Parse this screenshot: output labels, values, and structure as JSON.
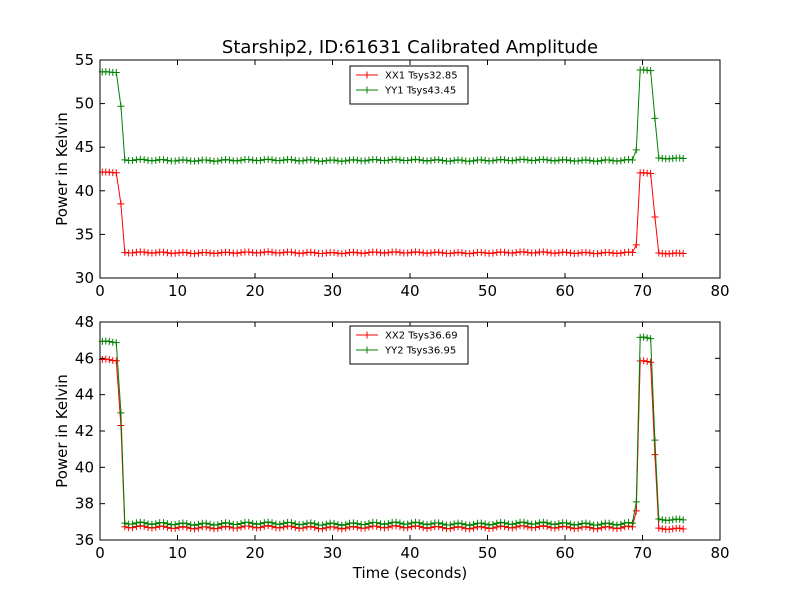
{
  "figure": {
    "title": "Starship2, ID:61631 Calibrated Amplitude",
    "xlabel": "Time (seconds)"
  },
  "chart_data": [
    {
      "type": "line",
      "ylabel": "Power in Kelvin",
      "xlim": [
        0,
        80
      ],
      "ylim": [
        30,
        55
      ],
      "xticks": [
        0,
        10,
        20,
        30,
        40,
        50,
        60,
        70,
        80
      ],
      "yticks": [
        30,
        35,
        40,
        45,
        50,
        55
      ],
      "grid": false,
      "legend_position": "top-center",
      "segments": [
        {
          "start": 0.3,
          "end": 2.2,
          "step": 0.45
        },
        {
          "start": 2.7,
          "end": 2.7,
          "step": 1
        },
        {
          "start": 3.2,
          "end": 68.7,
          "step": 0.5
        },
        {
          "start": 69.2,
          "end": 69.2,
          "step": 1
        },
        {
          "start": 69.7,
          "end": 71.2,
          "step": 0.45
        },
        {
          "start": 71.6,
          "end": 71.6,
          "step": 1
        },
        {
          "start": 72.1,
          "end": 75.3,
          "step": 0.45
        }
      ],
      "series": [
        {
          "name": "XX1 Tsys32.85",
          "color": "#ff0000",
          "levels": [
            {
              "value": 42.1,
              "jitter": 0.05
            },
            {
              "value": 38.5,
              "jitter": 0
            },
            {
              "value": 32.9,
              "jitter": 0.07
            },
            {
              "value": 33.8,
              "jitter": 0
            },
            {
              "value": 42.0,
              "jitter": 0.05
            },
            {
              "value": 37.0,
              "jitter": 0
            },
            {
              "value": 32.8,
              "jitter": 0.05
            }
          ]
        },
        {
          "name": "YY1 Tsys43.45",
          "color": "#008000",
          "levels": [
            {
              "value": 53.6,
              "jitter": 0.05
            },
            {
              "value": 49.7,
              "jitter": 0
            },
            {
              "value": 43.5,
              "jitter": 0.08
            },
            {
              "value": 44.7,
              "jitter": 0
            },
            {
              "value": 53.8,
              "jitter": 0.05
            },
            {
              "value": 48.3,
              "jitter": 0
            },
            {
              "value": 43.7,
              "jitter": 0.05
            }
          ]
        }
      ]
    },
    {
      "type": "line",
      "ylabel": "Power in Kelvin",
      "xlabel": "Time (seconds)",
      "xlim": [
        0,
        80
      ],
      "ylim": [
        36,
        48
      ],
      "xticks": [
        0,
        10,
        20,
        30,
        40,
        50,
        60,
        70,
        80
      ],
      "yticks": [
        36,
        38,
        40,
        42,
        44,
        46,
        48
      ],
      "grid": false,
      "legend_position": "top-center",
      "segments": [
        {
          "start": 0.3,
          "end": 2.2,
          "step": 0.45
        },
        {
          "start": 2.7,
          "end": 2.7,
          "step": 1
        },
        {
          "start": 3.2,
          "end": 68.7,
          "step": 0.5
        },
        {
          "start": 69.2,
          "end": 69.2,
          "step": 1
        },
        {
          "start": 69.7,
          "end": 71.2,
          "step": 0.45
        },
        {
          "start": 71.6,
          "end": 71.6,
          "step": 1
        },
        {
          "start": 72.1,
          "end": 75.3,
          "step": 0.45
        }
      ],
      "series": [
        {
          "name": "XX2 Tsys36.69",
          "color": "#ff0000",
          "levels": [
            {
              "value": 45.9,
              "jitter": 0.05
            },
            {
              "value": 42.3,
              "jitter": 0
            },
            {
              "value": 36.7,
              "jitter": 0.06
            },
            {
              "value": 37.6,
              "jitter": 0
            },
            {
              "value": 45.8,
              "jitter": 0.05
            },
            {
              "value": 40.7,
              "jitter": 0
            },
            {
              "value": 36.6,
              "jitter": 0.04
            }
          ]
        },
        {
          "name": "YY2 Tsys36.95",
          "color": "#008000",
          "levels": [
            {
              "value": 46.9,
              "jitter": 0.05
            },
            {
              "value": 43.0,
              "jitter": 0
            },
            {
              "value": 36.9,
              "jitter": 0.06
            },
            {
              "value": 38.1,
              "jitter": 0
            },
            {
              "value": 47.1,
              "jitter": 0.05
            },
            {
              "value": 41.5,
              "jitter": 0
            },
            {
              "value": 37.1,
              "jitter": 0.04
            }
          ]
        }
      ]
    }
  ]
}
